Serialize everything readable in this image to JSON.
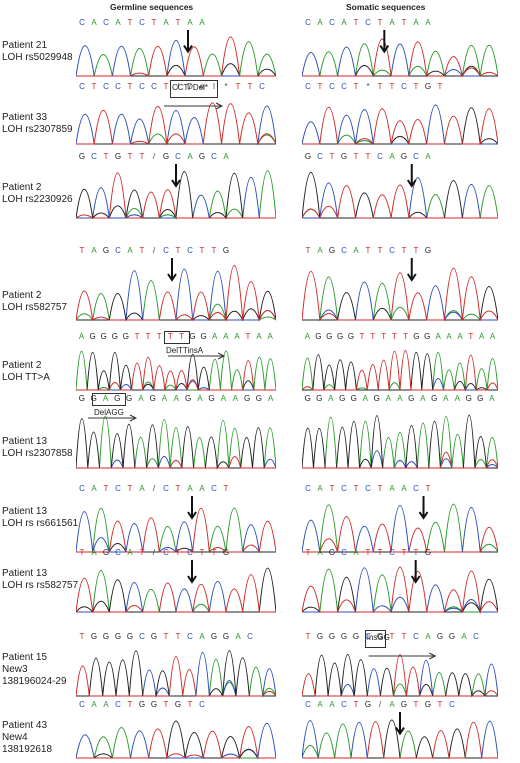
{
  "header": {
    "germline_title": "Germline sequences",
    "somatic_title": "Somatic sequences"
  },
  "rows": [
    {
      "patient": "Patient 21",
      "variant": "LOH rs5029948",
      "extra": "",
      "germline_seq": "CACATCTATAA",
      "somatic_seq": "CACATCTATAA",
      "germline_ann": "",
      "somatic_ann": ""
    },
    {
      "patient": "Patient 33",
      "variant": "LOH rs2307859",
      "extra": "",
      "germline_seq": "CTCCTCCT/Del*TTC",
      "somatic_seq": "CTCCT*TTCTGT",
      "germline_ann": "CCT/ Del*",
      "somatic_ann": ""
    },
    {
      "patient": "Patient 2",
      "variant": "LOH rs2230926",
      "extra": "",
      "germline_seq": "GCTGTT/GCAGCA",
      "somatic_seq": "GCTGTTCAGCA",
      "germline_ann": "",
      "somatic_ann": ""
    },
    {
      "patient": "Patient 2",
      "variant": "LOH rs582757",
      "extra": "",
      "germline_seq": "TAGCAT/CTCTTG",
      "somatic_seq": "TAGCATTCTTG",
      "germline_ann": "",
      "somatic_ann": ""
    },
    {
      "patient": "Patient 2",
      "variant": "LOH TT>A",
      "extra": "",
      "germline_seq": "AGGGGTTTTTGGAAATAA",
      "somatic_seq": "AGGGGTTTTTGGAAATAA",
      "germline_ann": "DelTTinsA",
      "somatic_ann": ""
    },
    {
      "patient": "Patient 13",
      "variant": "LOH rs2307858",
      "extra": "",
      "germline_seq": "GGAGGAGAAGAGAAGGA",
      "somatic_seq": "GGAGGAGAAGAGAAGGA",
      "germline_ann": "DelAGG",
      "somatic_ann": ""
    },
    {
      "patient": "Patient 13",
      "variant": "LOH rs rs661561",
      "extra": "",
      "germline_seq": "CATCTA/CTAACT",
      "somatic_seq": "CATCTCTAACT",
      "germline_ann": "",
      "somatic_ann": ""
    },
    {
      "patient": "Patient 13",
      "variant": "LOH rs rs582757",
      "extra": "",
      "germline_seq": "TAGCAT/CTCTTG",
      "somatic_seq": "TAGCATTCTTG",
      "germline_ann": "",
      "somatic_ann": ""
    },
    {
      "patient": "Patient 15",
      "variant": "New3",
      "extra": "138196024-29",
      "germline_seq": "TGGGGCGTTCAGGAC",
      "somatic_seq": "TGGGGCGTTCAGGAC",
      "germline_ann": "",
      "somatic_ann": "InsGG"
    },
    {
      "patient": "Patient 43",
      "variant": "New4",
      "extra": "138192618",
      "germline_seq": "CAACTGGTGTC",
      "somatic_seq": "CAACTG/AGTGTC",
      "germline_ann": "",
      "somatic_ann": ""
    }
  ]
}
